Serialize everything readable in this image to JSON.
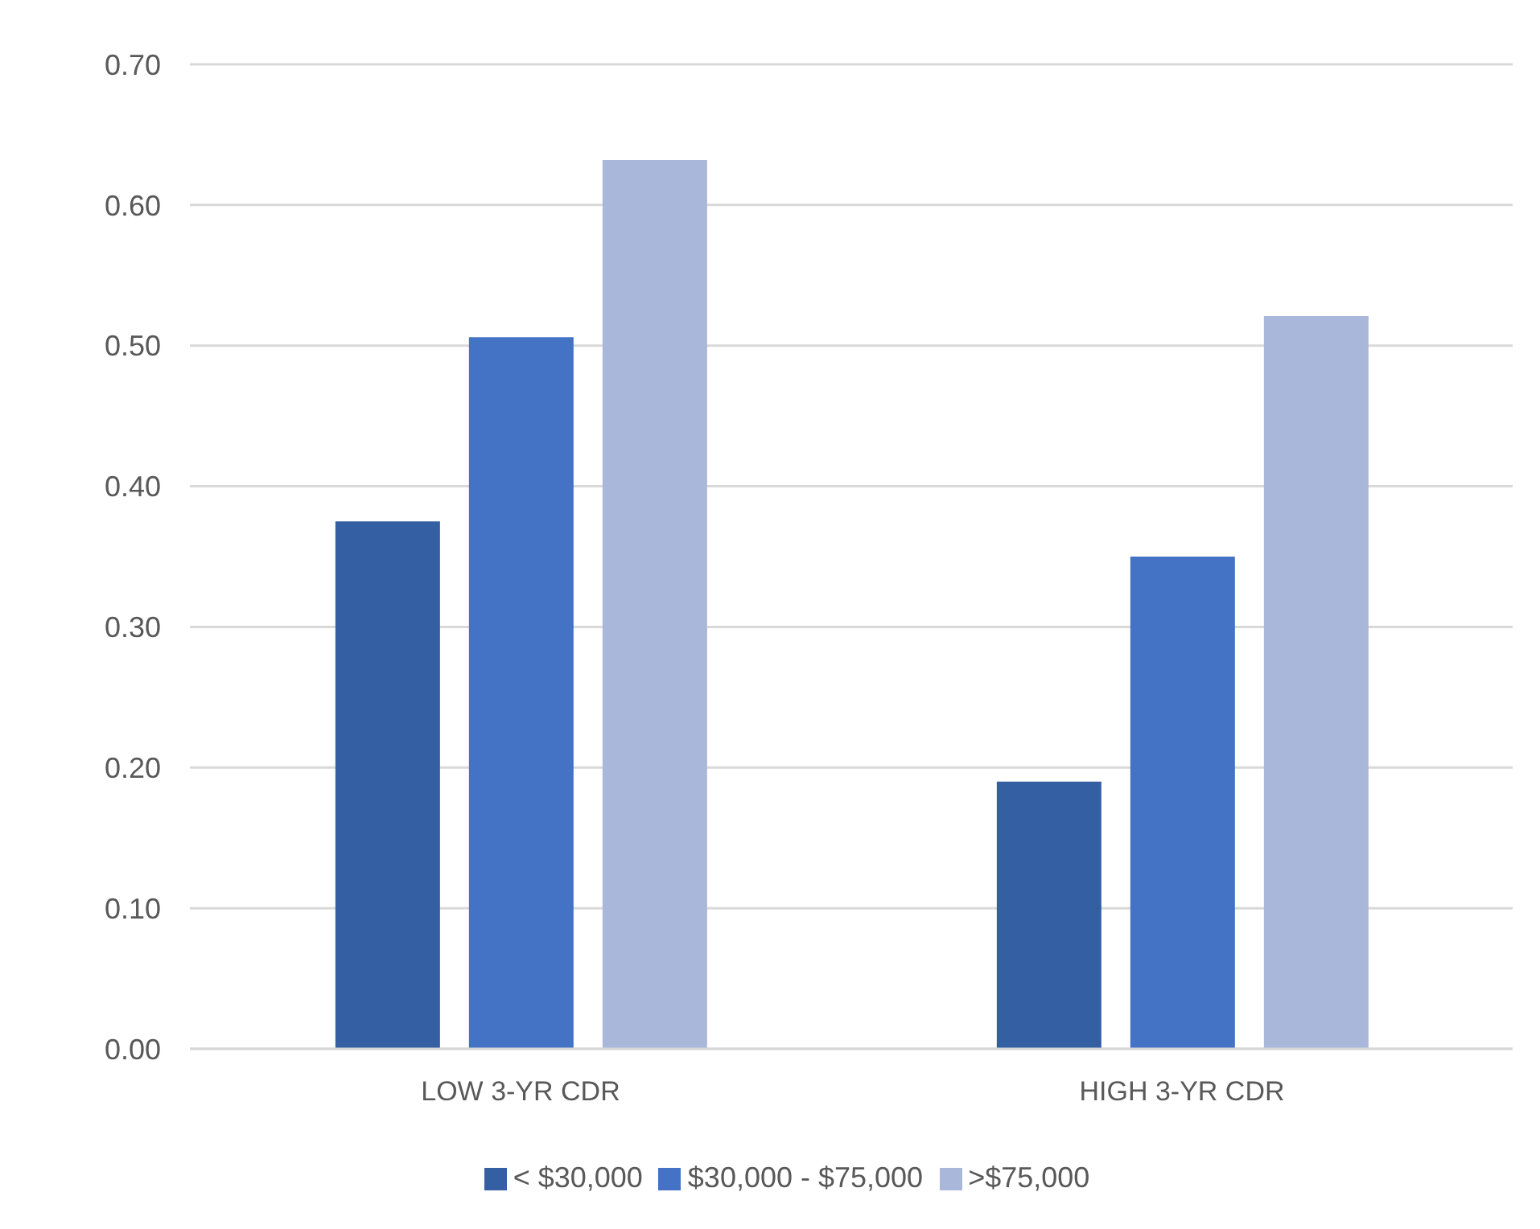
{
  "chart_data": {
    "type": "bar",
    "categories": [
      "LOW 3-YR CDR",
      "HIGH 3-YR CDR"
    ],
    "series": [
      {
        "name": "< $30,000",
        "color": "#355fa3",
        "values": [
          0.375,
          0.19
        ]
      },
      {
        "name": "$30,000 - $75,000",
        "color": "#4472c4",
        "values": [
          0.506,
          0.35
        ]
      },
      {
        "name": ">$75,000",
        "color": "#a9b7db",
        "values": [
          0.632,
          0.521
        ]
      }
    ],
    "ylim": [
      0,
      0.7
    ],
    "yticks": [
      {
        "value": 0,
        "label": "0.00"
      },
      {
        "value": 0.1,
        "label": "0.10"
      },
      {
        "value": 0.2,
        "label": "0.20"
      },
      {
        "value": 0.3,
        "label": "0.30"
      },
      {
        "value": 0.4,
        "label": "0.40"
      },
      {
        "value": 0.5,
        "label": "0.50"
      },
      {
        "value": 0.6,
        "label": "0.60"
      },
      {
        "value": 0.7,
        "label": "0.70"
      }
    ],
    "grid": "y",
    "legend": "bottom"
  }
}
